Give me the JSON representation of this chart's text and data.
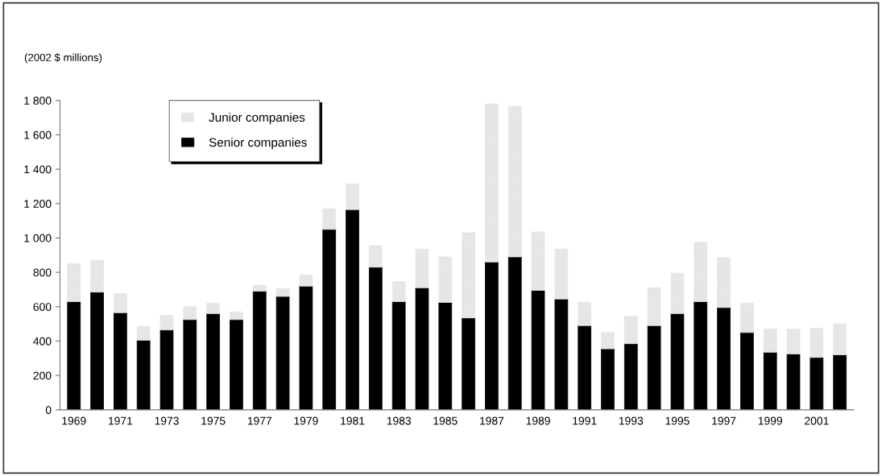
{
  "chart_data": {
    "type": "bar",
    "stacked": true,
    "ylabel": "(2002 $ millions)",
    "categories": [
      "1969",
      null,
      "1971",
      null,
      "1973",
      null,
      "1975",
      null,
      "1977",
      null,
      "1979",
      null,
      "1981",
      null,
      "1983",
      null,
      "1985",
      null,
      "1987",
      null,
      "1989",
      null,
      "1991",
      null,
      "1993",
      null,
      "1995",
      null,
      "1997",
      null,
      "1999",
      null,
      "2001",
      null
    ],
    "series": [
      {
        "name": "Senior companies",
        "color": "#000000",
        "values": [
          630,
          685,
          565,
          405,
          465,
          525,
          560,
          525,
          690,
          660,
          720,
          1050,
          1165,
          830,
          630,
          710,
          625,
          535,
          860,
          890,
          695,
          645,
          490,
          355,
          385,
          490,
          560,
          630,
          595,
          450,
          335,
          325,
          305,
          320
        ]
      },
      {
        "name": "Junior companies",
        "color": "#e6e6e6",
        "values": [
          220,
          185,
          110,
          80,
          85,
          75,
          60,
          45,
          35,
          45,
          65,
          120,
          150,
          125,
          115,
          225,
          265,
          495,
          920,
          875,
          340,
          290,
          135,
          95,
          160,
          220,
          235,
          345,
          290,
          170,
          135,
          145,
          170,
          180
        ]
      }
    ],
    "ylim": [
      0,
      1800
    ],
    "yticks": [
      0,
      200,
      400,
      600,
      800,
      {
        "value": 1000,
        "label": "1 000"
      },
      {
        "value": 1200,
        "label": "1 200"
      },
      {
        "value": 1400,
        "label": "1 400"
      },
      {
        "value": 1600,
        "label": "1 600"
      },
      {
        "value": 1800,
        "label": "1 800"
      }
    ],
    "grid": false,
    "legend": "top left"
  }
}
